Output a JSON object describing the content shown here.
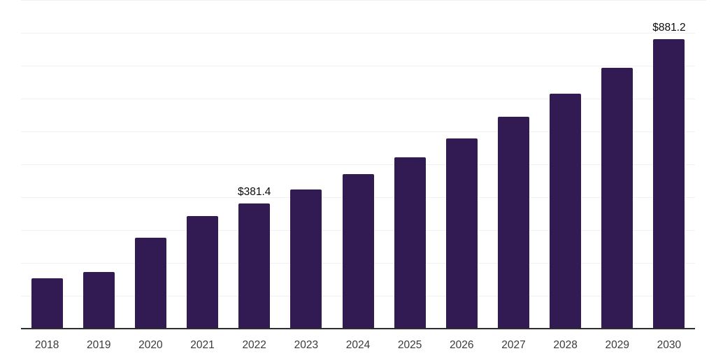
{
  "chart_data": {
    "type": "bar",
    "title": "",
    "xlabel": "",
    "ylabel": "",
    "categories": [
      "2018",
      "2019",
      "2020",
      "2021",
      "2022",
      "2023",
      "2024",
      "2025",
      "2026",
      "2027",
      "2028",
      "2029",
      "2030"
    ],
    "values": [
      153.2,
      172.3,
      276.5,
      342.4,
      381.4,
      423.5,
      470.2,
      522.1,
      579.7,
      643.7,
      714.7,
      793.6,
      881.2
    ],
    "point_labels": {
      "2022": "$381.4",
      "2030": "$881.2"
    },
    "ylim": [
      0,
      1000
    ],
    "gridline_step": 100,
    "grid": true,
    "legend": "none",
    "colors": {
      "bar": "#321B52",
      "axis": "#2E2E2E",
      "grid": "#F1F1F4",
      "year_label": "#3A3A3A",
      "data_label": "#0B0B0B",
      "background": "#FFFFFF"
    }
  }
}
